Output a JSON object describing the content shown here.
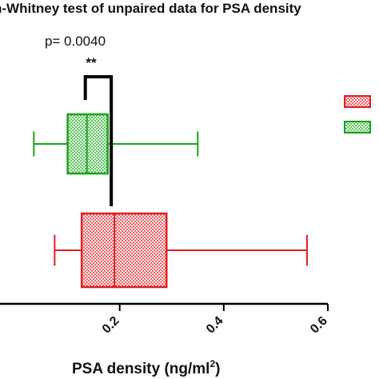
{
  "chart_data": {
    "type": "boxplot",
    "title": "n-Whitney test of unpaired data for PSA density",
    "xlabel": "PSA density  (ng/ml",
    "xlabel_superscript": "2",
    "xlabel_suffix": ")",
    "xlim": [
      -0.03,
      0.6
    ],
    "xticks": [
      0.2,
      0.4,
      0.6
    ],
    "xtick_labels": [
      "0.2",
      "0.4",
      "0.6"
    ],
    "grid": false,
    "legend_position": "right",
    "significance": {
      "p_text": "p= 0.0040",
      "stars": "**"
    },
    "series": [
      {
        "color": "#16a516",
        "fill": "dotted",
        "min": 0.035,
        "q1": 0.1,
        "median": 0.137,
        "q3": 0.177,
        "max": 0.35
      },
      {
        "color": "#e01e24",
        "fill": "dotted",
        "min": 0.075,
        "q1": 0.127,
        "median": 0.19,
        "q3": 0.29,
        "max": 0.56
      }
    ]
  }
}
